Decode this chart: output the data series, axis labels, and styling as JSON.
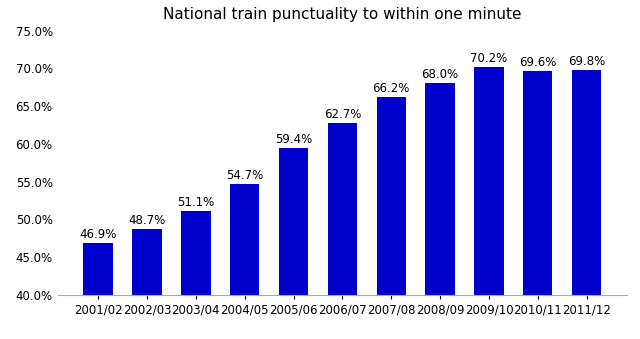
{
  "title": "National train punctuality to within one minute",
  "categories": [
    "2001/02",
    "2002/03",
    "2003/04",
    "2004/05",
    "2005/06",
    "2006/07",
    "2007/08",
    "2008/09",
    "2009/10",
    "2010/11",
    "2011/12"
  ],
  "values": [
    46.9,
    48.7,
    51.1,
    54.7,
    59.4,
    62.7,
    66.2,
    68.0,
    70.2,
    69.6,
    69.8
  ],
  "labels": [
    "46.9%",
    "48.7%",
    "51.1%",
    "54.7%",
    "59.4%",
    "62.7%",
    "66.2%",
    "68.0%",
    "70.2%",
    "69.6%",
    "69.8%"
  ],
  "bar_color": "#0000CC",
  "ylim": [
    40.0,
    75.0
  ],
  "yticks": [
    40.0,
    45.0,
    50.0,
    55.0,
    60.0,
    65.0,
    70.0,
    75.0
  ],
  "background_color": "#ffffff",
  "title_fontsize": 11,
  "label_fontsize": 8.5,
  "tick_fontsize": 8.5
}
